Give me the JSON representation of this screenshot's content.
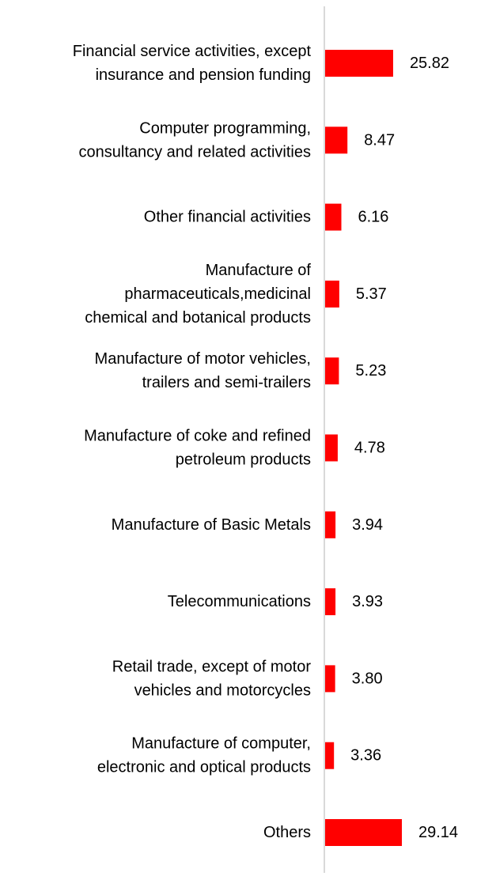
{
  "chart_data": {
    "type": "bar",
    "orientation": "horizontal",
    "title": "",
    "xlabel": "",
    "ylabel": "",
    "xlim": [
      0,
      29.14
    ],
    "grid": false,
    "legend": "none",
    "bar_color": "#ff0000",
    "axis_color": "#d9d9d9",
    "categories": [
      [
        "Financial service activities, except",
        "insurance and pension funding"
      ],
      [
        "Computer programming,",
        "consultancy and related activities"
      ],
      [
        "Other financial activities"
      ],
      [
        "Manufacture of",
        "pharmaceuticals,medicinal",
        "chemical and botanical products"
      ],
      [
        "Manufacture of motor vehicles,",
        "trailers and semi-trailers"
      ],
      [
        "Manufacture of coke and refined",
        "petroleum products"
      ],
      [
        "Manufacture of Basic Metals"
      ],
      [
        "Telecommunications"
      ],
      [
        "Retail trade, except of motor",
        "vehicles and motorcycles"
      ],
      [
        "Manufacture of computer,",
        "electronic and optical products"
      ],
      [
        "Others"
      ]
    ],
    "values": [
      25.82,
      8.47,
      6.16,
      5.37,
      5.23,
      4.78,
      3.94,
      3.93,
      3.8,
      3.36,
      29.14
    ],
    "value_labels": [
      "25.82",
      "8.47",
      "6.16",
      "5.37",
      "5.23",
      "4.78",
      "3.94",
      "3.93",
      "3.80",
      "3.36",
      "29.14"
    ]
  }
}
